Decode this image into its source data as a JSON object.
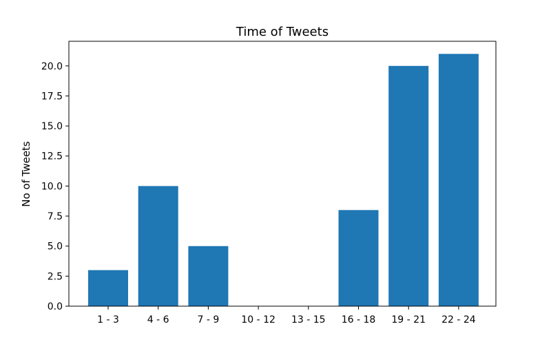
{
  "chart_data": {
    "type": "bar",
    "title": "Time of Tweets",
    "xlabel": "",
    "ylabel": "No of Tweets",
    "categories": [
      "1 - 3",
      "4 - 6",
      "7 - 9",
      "10 - 12",
      "13 - 15",
      "16 - 18",
      "19 - 21",
      "22 - 24"
    ],
    "values": [
      3,
      10,
      5,
      0,
      0,
      8,
      20,
      21
    ],
    "ylim": [
      0,
      22.05
    ],
    "yticks": [
      0.0,
      2.5,
      5.0,
      7.5,
      10.0,
      12.5,
      15.0,
      17.5,
      20.0
    ],
    "ytick_labels": [
      "0.0",
      "2.5",
      "5.0",
      "7.5",
      "10.0",
      "12.5",
      "15.0",
      "17.5",
      "20.0"
    ],
    "bar_color": "#1f77b4",
    "grid": false
  }
}
